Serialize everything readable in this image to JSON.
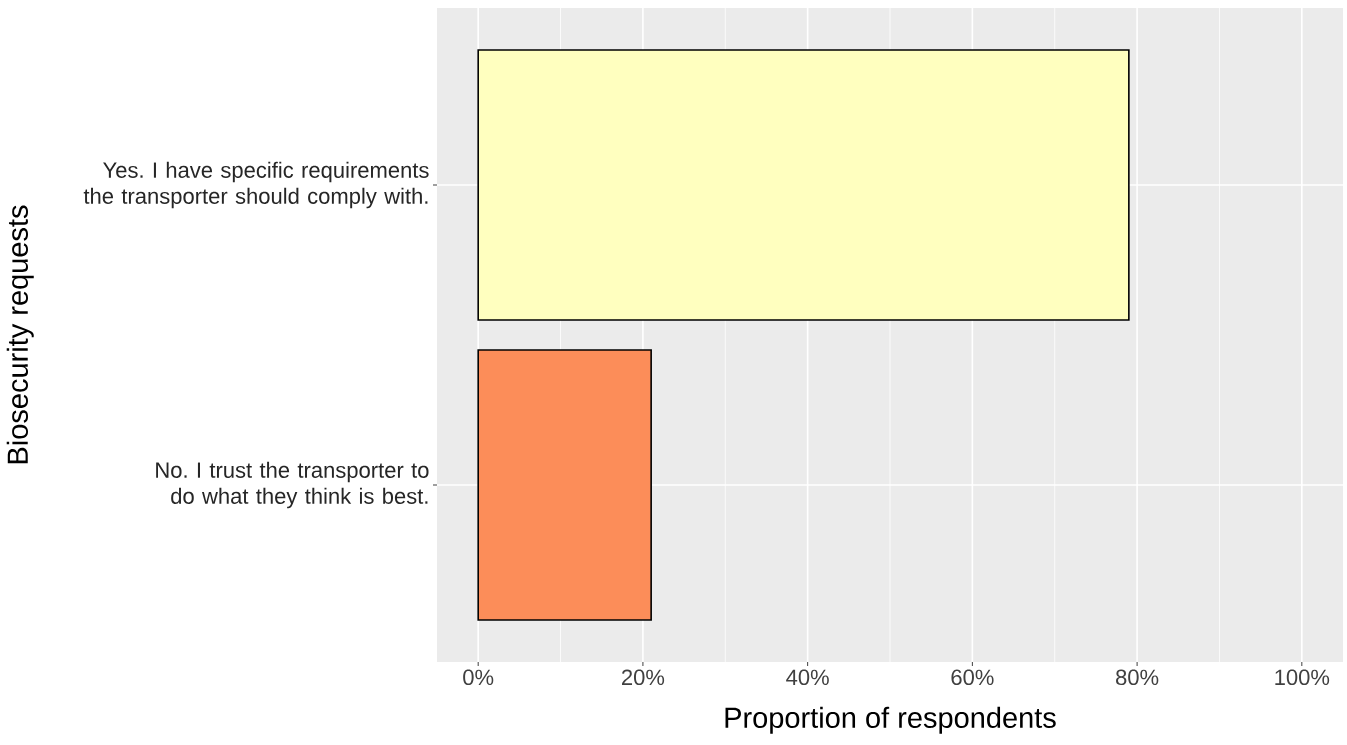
{
  "chart_data": {
    "type": "bar",
    "orientation": "horizontal",
    "xlabel": "Proportion of respondents",
    "ylabel": "Biosecurity requests",
    "categories": [
      "Yes. I have specific requirements the transporter should comply with.",
      "No. I trust the transporter to do what they think is best."
    ],
    "values": [
      79,
      21
    ],
    "colors": [
      "#ffffbf",
      "#fc8d59"
    ],
    "xlim": [
      -5,
      105
    ],
    "xticks": [
      {
        "value": 0,
        "label": "0%"
      },
      {
        "value": 20,
        "label": "20%"
      },
      {
        "value": 40,
        "label": "40%"
      },
      {
        "value": 60,
        "label": "60%"
      },
      {
        "value": 80,
        "label": "80%"
      },
      {
        "value": 100,
        "label": "100%"
      }
    ],
    "grid": true
  }
}
